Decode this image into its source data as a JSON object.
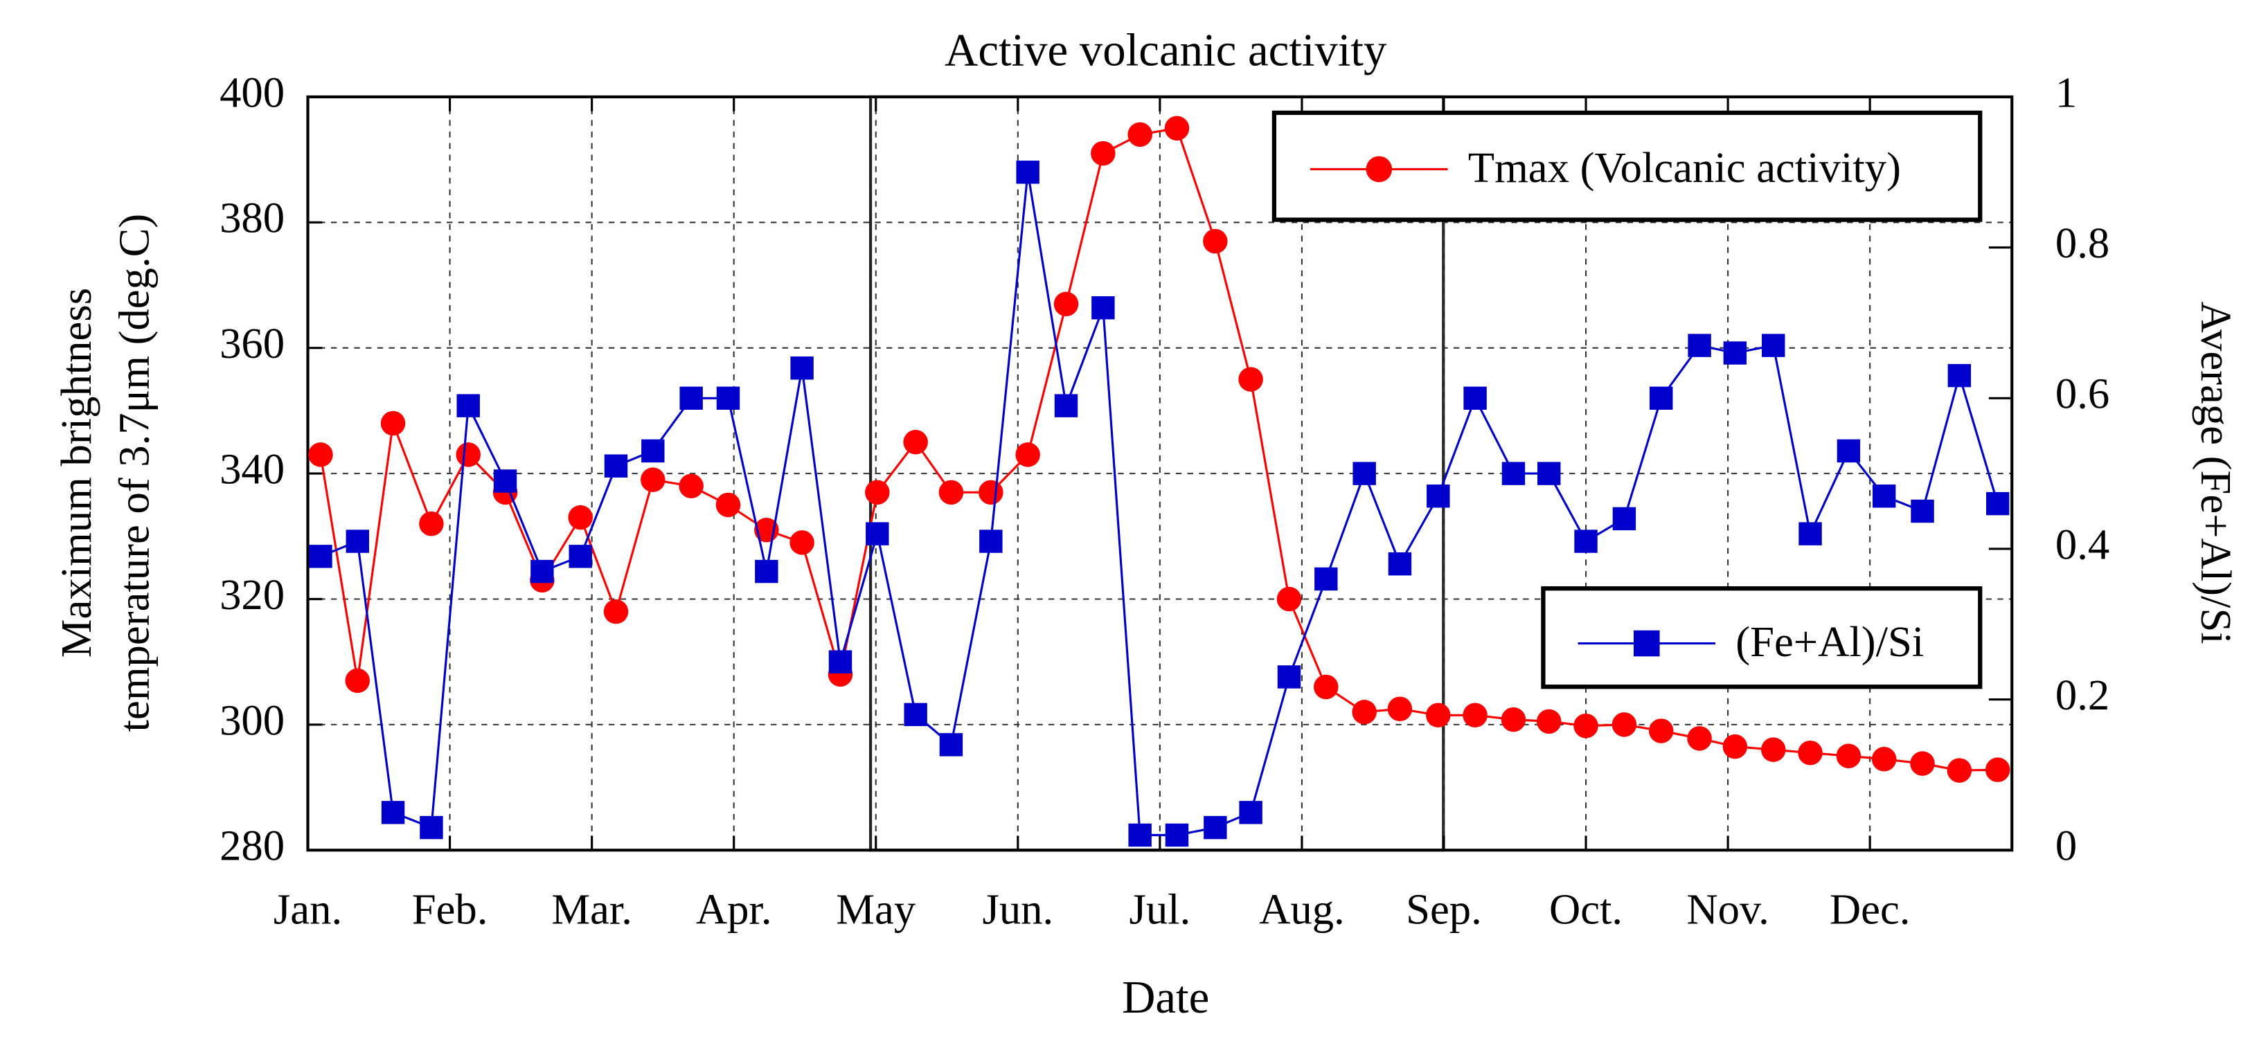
{
  "chart_data": {
    "type": "line",
    "title": "Active volcanic activity",
    "xlabel": "Date",
    "ylabel": [
      "Maximum brightness",
      "temperature of 3.7μm (deg.C)"
    ],
    "y2label": "Average (Fe+Al)/Si",
    "xlim": [
      0,
      12
    ],
    "xticks": [
      {
        "value": 0,
        "label": "Jan."
      },
      {
        "value": 1,
        "label": "Feb."
      },
      {
        "value": 2,
        "label": "Mar."
      },
      {
        "value": 3,
        "label": "Apr."
      },
      {
        "value": 4,
        "label": "May"
      },
      {
        "value": 5,
        "label": "Jun."
      },
      {
        "value": 6,
        "label": "Jul."
      },
      {
        "value": 7,
        "label": "Aug."
      },
      {
        "value": 8,
        "label": "Sep."
      },
      {
        "value": 9,
        "label": "Oct."
      },
      {
        "value": 10,
        "label": "Nov."
      },
      {
        "value": 11,
        "label": "Dec."
      }
    ],
    "ylim": [
      280,
      400
    ],
    "yticks": [
      280,
      300,
      320,
      340,
      360,
      380,
      400
    ],
    "y2lim": [
      0,
      1
    ],
    "y2ticks": [
      0,
      0.2,
      0.4,
      0.6,
      0.8,
      1
    ],
    "grid": true,
    "x": [
      0.09,
      0.35,
      0.6,
      0.87,
      1.13,
      1.39,
      1.65,
      1.92,
      2.17,
      2.43,
      2.7,
      2.96,
      3.23,
      3.48,
      3.75,
      4.01,
      4.28,
      4.53,
      4.81,
      5.07,
      5.34,
      5.6,
      5.86,
      6.12,
      6.39,
      6.64,
      6.91,
      7.17,
      7.44,
      7.69,
      7.96,
      8.22,
      8.49,
      8.74,
      9.0,
      9.27,
      9.53,
      9.8,
      10.05,
      10.32,
      10.58,
      10.85,
      11.1,
      11.37,
      11.63,
      11.9
    ],
    "series": [
      {
        "name": "Tmax (Volcanic activity)",
        "color": "#ff0000",
        "marker": "circle",
        "values": [
          343,
          307,
          348,
          332,
          343,
          337,
          323,
          333,
          318,
          339,
          338,
          335,
          331,
          329,
          308,
          337,
          345,
          337,
          337,
          343,
          367,
          391,
          394,
          395,
          377,
          355,
          320,
          306,
          302,
          302.5,
          301.5,
          301.5,
          300.8,
          300.5,
          299.8,
          300,
          299,
          297.8,
          296.5,
          296,
          295.5,
          295,
          294.5,
          293.8,
          292.7,
          292.8
        ]
      },
      {
        "name": "(Fe+Al)/Si",
        "color": "#0000cc",
        "marker": "square",
        "axis": "y2",
        "values": [
          0.39,
          0.41,
          0.05,
          0.03,
          0.59,
          0.49,
          0.37,
          0.39,
          0.51,
          0.53,
          0.6,
          0.6,
          0.37,
          0.64,
          0.25,
          0.42,
          0.18,
          0.14,
          0.41,
          0.9,
          0.59,
          0.72,
          0.02,
          0.02,
          0.03,
          0.05,
          0.23,
          0.36,
          0.5,
          0.38,
          0.47,
          0.6,
          0.5,
          0.5,
          0.41,
          0.44,
          0.6,
          0.67,
          0.66,
          0.67,
          0.42,
          0.53,
          0.47,
          0.45,
          0.63,
          0.46
        ]
      }
    ]
  }
}
